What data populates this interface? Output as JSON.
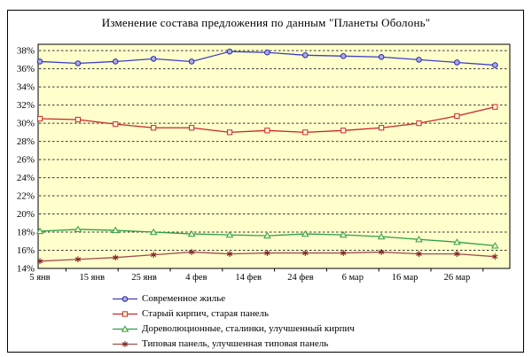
{
  "chart_data": {
    "type": "line",
    "title": "Изменение состава предложения по данным  \"Планеты Оболонь\"",
    "plot_bg": "#FFFFCC",
    "grid": "horizontal-dashed-black",
    "legend_position": "bottom-left",
    "ylim": [
      14,
      38.7
    ],
    "y_ticks": [
      14,
      16,
      18,
      20,
      22,
      24,
      26,
      28,
      30,
      32,
      34,
      36,
      38
    ],
    "y_tick_suffix": "%",
    "x_tick_labels": [
      "5 янв",
      "15 янв",
      "25 янв",
      "4 фев",
      "14 фев",
      "24 фев",
      "6 мар",
      "16 мар",
      "26 мар"
    ],
    "x_tick_days": [
      0,
      10,
      20,
      30,
      40,
      50,
      60,
      70,
      80
    ],
    "x_minor_tick_days": [
      5,
      15,
      25,
      35,
      45,
      55,
      65,
      75,
      85
    ],
    "point_days": [
      0,
      7.3,
      14.5,
      21.8,
      29.1,
      36.4,
      43.6,
      50.9,
      58.2,
      65.5,
      72.7,
      80.0,
      87.3
    ],
    "series": [
      {
        "name": "Современное жилье",
        "marker": "circle",
        "color": "#3E3EC8",
        "marker_color": "#2929A3",
        "marker_fill": "#ABABEB",
        "values": [
          36.8,
          36.6,
          36.8,
          37.1,
          36.8,
          37.9,
          37.8,
          37.5,
          37.4,
          37.3,
          37.0,
          36.7,
          36.4
        ]
      },
      {
        "name": "Старый кирпич, старая панель",
        "marker": "square",
        "color": "#CC2626",
        "marker_color": "#CC2626",
        "marker_fill": "#FFFFDD",
        "values": [
          30.5,
          30.4,
          29.9,
          29.5,
          29.5,
          29.0,
          29.2,
          29.0,
          29.2,
          29.5,
          30.0,
          30.8,
          31.8
        ]
      },
      {
        "name": "Дореволюционные, сталинки, улучшенный кирпич",
        "marker": "triangle",
        "color": "#2E9E46",
        "marker_color": "#2E9E46",
        "marker_fill": "#FFFFCC",
        "values": [
          18.1,
          18.3,
          18.2,
          18.0,
          17.8,
          17.7,
          17.6,
          17.8,
          17.7,
          17.5,
          17.2,
          16.9,
          16.5
        ]
      },
      {
        "name": "Типовая панель, улучшенная типовая панель",
        "marker": "star",
        "color": "#A34D4D",
        "marker_color": "#7E1F1F",
        "marker_fill": "#7E1F1F",
        "values": [
          14.8,
          15.0,
          15.2,
          15.5,
          15.8,
          15.6,
          15.7,
          15.7,
          15.7,
          15.8,
          15.6,
          15.6,
          15.3
        ]
      }
    ]
  }
}
